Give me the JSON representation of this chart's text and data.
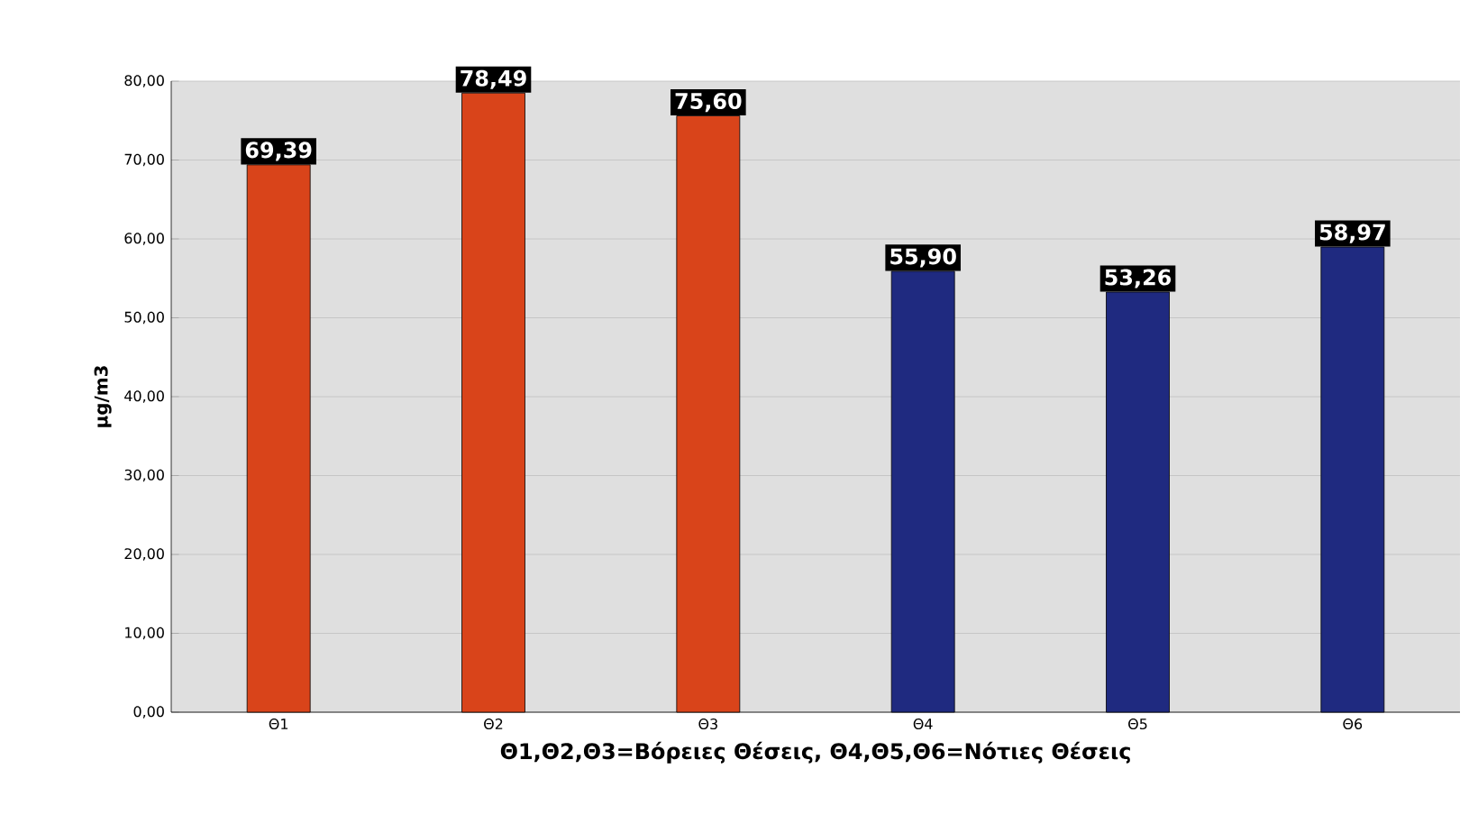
{
  "chart_data": {
    "type": "bar",
    "categories": [
      "Θ1",
      "Θ2",
      "Θ3",
      "Θ4",
      "Θ5",
      "Θ6"
    ],
    "values": [
      69.39,
      78.49,
      75.6,
      55.9,
      53.26,
      58.97
    ],
    "colors": [
      "#d9441a",
      "#d9441a",
      "#d9441a",
      "#1f2a80",
      "#1f2a80",
      "#1f2a80"
    ],
    "value_labels": [
      "69,39",
      "78,49",
      "75,60",
      "55,90",
      "53,26",
      "58,97"
    ],
    "ylabel": "μg/m3",
    "xlabel": "Θ1,Θ2,Θ3=Βόρειες Θέσεις,    Θ4,Θ5,Θ6=Νότιες Θέσεις",
    "ylim": [
      0,
      80
    ],
    "yticks": [
      {
        "value": 0,
        "label": "0,00"
      },
      {
        "value": 10,
        "label": "10,00"
      },
      {
        "value": 20,
        "label": "20,00"
      },
      {
        "value": 30,
        "label": "30,00"
      },
      {
        "value": 40,
        "label": "40,00"
      },
      {
        "value": 50,
        "label": "50,00"
      },
      {
        "value": 60,
        "label": "60,00"
      },
      {
        "value": 70,
        "label": "70,00"
      },
      {
        "value": 80,
        "label": "80,00"
      }
    ],
    "grid": "y"
  }
}
